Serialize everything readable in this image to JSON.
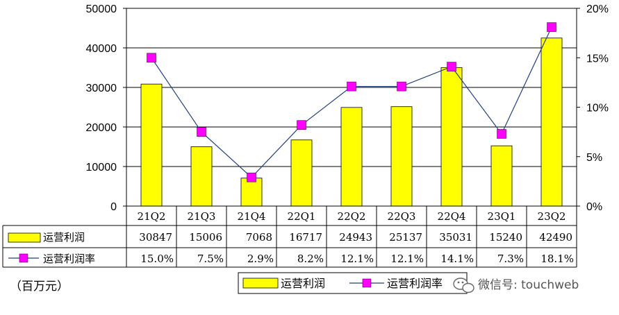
{
  "chart_data": {
    "type": "bar",
    "categories": [
      "21Q2",
      "21Q3",
      "21Q4",
      "22Q1",
      "22Q2",
      "22Q3",
      "22Q4",
      "23Q1",
      "23Q2"
    ],
    "series": [
      {
        "name": "运营利润",
        "type": "bar",
        "axis": "left",
        "color": "#ffff00",
        "values": [
          30847,
          15006,
          7068,
          16717,
          24943,
          25137,
          35031,
          15240,
          42490
        ],
        "labels": [
          "30847",
          "15006",
          "7068",
          "16717",
          "24943",
          "25137",
          "35031",
          "15240",
          "42490"
        ]
      },
      {
        "name": "运营利润率",
        "type": "line",
        "axis": "right",
        "line_color": "#1f3f7f",
        "marker_color": "#ff00ff",
        "values": [
          15.0,
          7.5,
          2.9,
          8.2,
          12.1,
          12.1,
          14.1,
          7.3,
          18.1
        ],
        "labels": [
          "15.0%",
          "7.5%",
          "2.9%",
          "8.2%",
          "12.1%",
          "12.1%",
          "14.1%",
          "7.3%",
          "18.1%"
        ]
      }
    ],
    "y_left": {
      "min": 0,
      "max": 50000,
      "ticks": [
        "0",
        "10000",
        "20000",
        "30000",
        "40000",
        "50000"
      ]
    },
    "y_right": {
      "min": 0,
      "max": 20,
      "ticks": [
        "0%",
        "5%",
        "10%",
        "15%",
        "20%"
      ]
    },
    "grid": true,
    "unit_label": "（百万元）",
    "legend": {
      "position": "bottom",
      "items": [
        "运营利润",
        "运营利润率"
      ]
    }
  },
  "watermark": "微信号: touchweb"
}
